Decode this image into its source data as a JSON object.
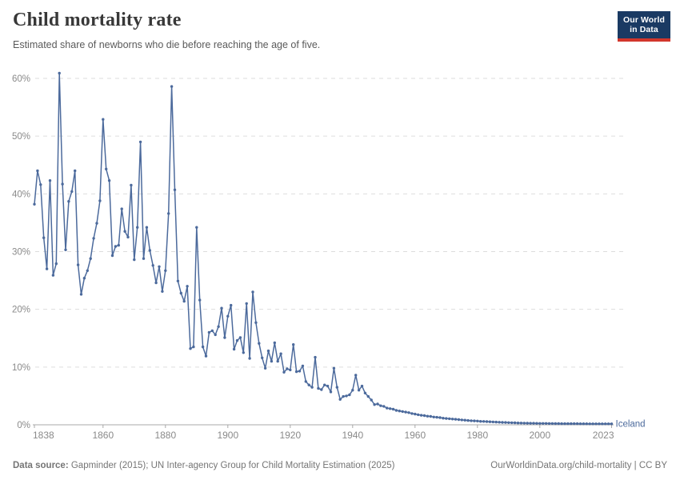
{
  "header": {
    "title": "Child mortality rate",
    "subtitle": "Estimated share of newborns who die before reaching the age of five.",
    "logo": {
      "line1": "Our World",
      "line2": "in Data"
    }
  },
  "entity_label": "Iceland",
  "chart_data": {
    "type": "line",
    "title": "Child mortality rate",
    "subtitle": "Estimated share of newborns who die before reaching the age of five.",
    "xlabel": "",
    "ylabel": "",
    "unit": "%",
    "xlim": [
      1838,
      2023
    ],
    "ylim": [
      0,
      62
    ],
    "grid": "horizontal-dashed",
    "legend": "entity-label-at-line-end",
    "markers": "circle",
    "xticks": [
      1838,
      1860,
      1880,
      1900,
      1920,
      1940,
      1960,
      1980,
      2000,
      2023
    ],
    "yticks": [
      0,
      10,
      20,
      30,
      40,
      50,
      60
    ],
    "ytick_suffix": "%",
    "series": [
      {
        "name": "Iceland",
        "color": "#4C6A9C",
        "start_year": 1838,
        "values": [
          38.2,
          44,
          41.6,
          32.4,
          27,
          42.3,
          25.9,
          27.9,
          60.9,
          41.7,
          30.3,
          38.7,
          40.4,
          44,
          27.7,
          22.6,
          25.4,
          26.7,
          28.8,
          32.3,
          34.9,
          38.8,
          52.9,
          44.3,
          42.3,
          29.3,
          30.9,
          31.1,
          37.4,
          33.5,
          32.5,
          41.5,
          28.6,
          34.2,
          49,
          28.8,
          34.2,
          30.2,
          27.6,
          24.6,
          27.4,
          23.1,
          26.7,
          36.6,
          58.6,
          40.7,
          24.9,
          22.8,
          21.4,
          24,
          13.2,
          13.5,
          34.2,
          21.6,
          13.5,
          11.9,
          16,
          16.3,
          15.6,
          17,
          20.2,
          15.1,
          18.8,
          20.7,
          13.1,
          14.6,
          15.1,
          12.5,
          21,
          11.5,
          23,
          17.7,
          14.1,
          11.6,
          9.8,
          12.8,
          11,
          14.2,
          11,
          12.3,
          9.1,
          9.7,
          9.5,
          13.9,
          9.2,
          9.3,
          10.2,
          7.5,
          6.9,
          6.5,
          11.7,
          6.3,
          6.1,
          6.9,
          6.7,
          5.7,
          9.8,
          6.5,
          4.4,
          4.9,
          5,
          5.2,
          6,
          8.6,
          6,
          6.7,
          5.5,
          4.9,
          4.3,
          3.5,
          3.6,
          3.3,
          3.2,
          2.9,
          2.8,
          2.7,
          2.5,
          2.4,
          2.3,
          2.2,
          2.1,
          1.95,
          1.85,
          1.75,
          1.65,
          1.6,
          1.5,
          1.45,
          1.35,
          1.3,
          1.25,
          1.15,
          1.1,
          1.05,
          1,
          0.95,
          0.9,
          0.85,
          0.8,
          0.75,
          0.7,
          0.68,
          0.65,
          0.6,
          0.58,
          0.55,
          0.52,
          0.5,
          0.47,
          0.45,
          0.42,
          0.4,
          0.38,
          0.36,
          0.34,
          0.32,
          0.3,
          0.29,
          0.28,
          0.27,
          0.26,
          0.25,
          0.24,
          0.23,
          0.23,
          0.22,
          0.22,
          0.21,
          0.21,
          0.2,
          0.2,
          0.2,
          0.19,
          0.19,
          0.19,
          0.18,
          0.18,
          0.18,
          0.17,
          0.17,
          0.17,
          0.17,
          0.16,
          0.16,
          0.16,
          0.16
        ]
      }
    ]
  },
  "colors": {
    "line": "#4C6A9C",
    "grid": "#dddddd",
    "axis": "#a8a8a8",
    "tick_text": "#8a8a8a",
    "title": "#383838",
    "subtitle": "#5a5a5a",
    "footer": "#757575",
    "logo_bg": "#1a3a63",
    "logo_bar": "#d2362c"
  },
  "footer": {
    "source_label": "Data source:",
    "source_text": " Gapminder (2015); UN Inter-agency Group for Child Mortality Estimation (2025)",
    "link_text": "OurWorldinData.org/child-mortality",
    "separator": " | ",
    "license_text": "CC BY"
  }
}
